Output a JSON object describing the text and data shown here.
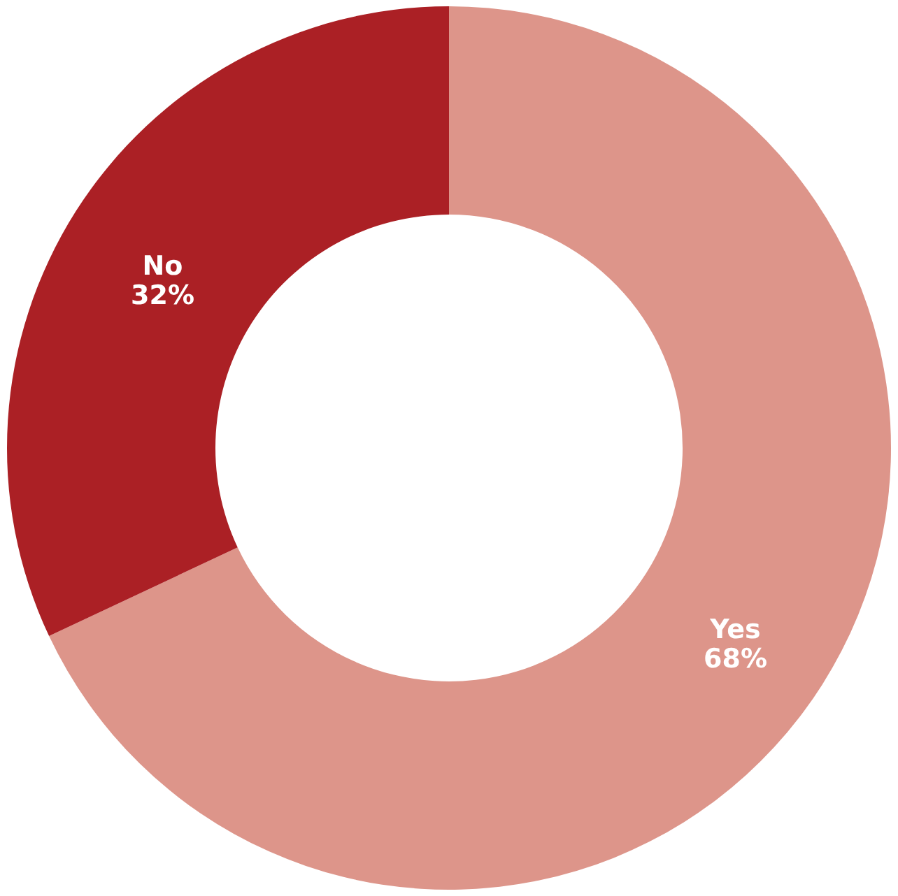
{
  "chart_data": {
    "type": "donut",
    "categories": [
      "Yes",
      "No"
    ],
    "values": [
      68,
      32
    ],
    "colors": [
      "#dd958a",
      "#ab2025"
    ],
    "value_labels": [
      "68%",
      "32%"
    ]
  }
}
